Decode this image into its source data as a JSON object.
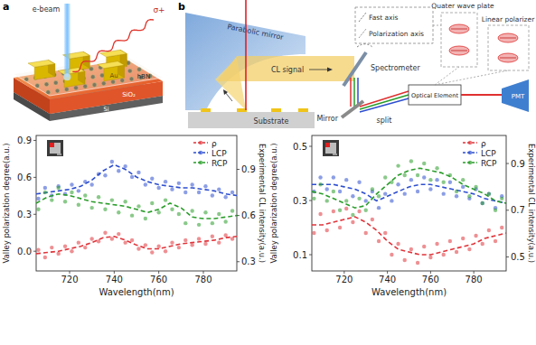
{
  "chart_data": [
    {
      "type": "scatter",
      "x_label": "Wavelength(nm)",
      "y_label": "Valley polarization degree(a.u.)",
      "y2_label": "Experimental CL intensity(a.u.)",
      "xlim": [
        705,
        795
      ],
      "xticks": [
        720,
        740,
        760,
        780
      ],
      "ylim": [
        -0.16,
        0.94
      ],
      "yticks": [
        {
          "value": 0,
          "label": "0.0"
        },
        0.3,
        0.6,
        0.9
      ],
      "y2lim": [
        0.24,
        1.12
      ],
      "y2ticks": [
        0.3,
        0.6,
        0.9
      ],
      "grid": false,
      "legend": "upper right",
      "x": [
        706,
        709,
        712,
        715,
        718,
        721,
        724,
        727,
        730,
        733,
        736,
        739,
        742,
        745,
        748,
        751,
        754,
        757,
        760,
        763,
        766,
        769,
        772,
        775,
        778,
        781,
        784,
        787,
        790,
        793
      ],
      "fit_x": [
        705,
        710,
        715,
        720,
        725,
        730,
        735,
        740,
        745,
        750,
        755,
        760,
        765,
        770,
        775,
        780,
        785,
        790,
        795
      ],
      "series": [
        {
          "name": "ρ",
          "color": "#e0343a",
          "marker": "circle",
          "line_style": "dashed",
          "values": [
            0.01,
            -0.05,
            0.03,
            -0.02,
            0.04,
            0,
            0.07,
            0.03,
            0.1,
            0.08,
            0.15,
            0.1,
            0.14,
            0.07,
            0.09,
            0.02,
            0.05,
            -0.01,
            0.04,
            0,
            0.07,
            0.03,
            0.09,
            0.05,
            0.1,
            0.06,
            0.12,
            0.07,
            0.13,
            0.1
          ],
          "fit": [
            -0.02,
            -0.01,
            0,
            0.02,
            0.04,
            0.07,
            0.11,
            0.12,
            0.09,
            0.05,
            0.02,
            0.02,
            0.04,
            0.06,
            0.07,
            0.08,
            0.09,
            0.11,
            0.12
          ]
        },
        {
          "name": "LCP",
          "color": "#2e4fd0",
          "marker": "circle",
          "line_style": "dashed",
          "axis": "y2",
          "values": [
            0.71,
            0.78,
            0.73,
            0.79,
            0.74,
            0.8,
            0.76,
            0.82,
            0.8,
            0.87,
            0.86,
            0.95,
            0.89,
            0.92,
            0.85,
            0.88,
            0.8,
            0.84,
            0.78,
            0.82,
            0.77,
            0.81,
            0.75,
            0.8,
            0.75,
            0.79,
            0.73,
            0.77,
            0.72,
            0.75
          ],
          "fit": [
            0.74,
            0.75,
            0.76,
            0.77,
            0.79,
            0.83,
            0.89,
            0.93,
            0.9,
            0.85,
            0.82,
            0.8,
            0.79,
            0.78,
            0.78,
            0.77,
            0.76,
            0.74,
            0.73
          ]
        },
        {
          "name": "RCP",
          "color": "#2a9d2a",
          "marker": "circle",
          "line_style": "dashed",
          "axis": "y2",
          "values": [
            0.64,
            0.75,
            0.7,
            0.78,
            0.69,
            0.75,
            0.67,
            0.73,
            0.65,
            0.72,
            0.64,
            0.7,
            0.62,
            0.69,
            0.6,
            0.66,
            0.58,
            0.68,
            0.62,
            0.7,
            0.64,
            0.61,
            0.55,
            0.63,
            0.54,
            0.62,
            0.55,
            0.61,
            0.56,
            0.63
          ],
          "fit": [
            0.68,
            0.72,
            0.74,
            0.73,
            0.71,
            0.69,
            0.68,
            0.67,
            0.66,
            0.64,
            0.62,
            0.64,
            0.68,
            0.65,
            0.59,
            0.58,
            0.58,
            0.59,
            0.6
          ]
        }
      ]
    },
    {
      "type": "scatter",
      "x_label": "Wavelength(nm)",
      "y_label": "Valley polarization degree(a.u.)",
      "y2_label": "Experimental CL intensity(a.u.)",
      "xlim": [
        705,
        795
      ],
      "xticks": [
        720,
        740,
        760,
        780
      ],
      "ylim": [
        0.04,
        0.54
      ],
      "yticks": [
        0.1,
        0.3,
        0.5
      ],
      "y2lim": [
        0.44,
        1.02
      ],
      "y2ticks": [
        0.5,
        0.7,
        0.9
      ],
      "grid": false,
      "legend": "upper right",
      "x": [
        706,
        709,
        712,
        715,
        718,
        721,
        724,
        727,
        730,
        733,
        736,
        739,
        742,
        745,
        748,
        751,
        754,
        757,
        760,
        763,
        766,
        769,
        772,
        775,
        778,
        781,
        784,
        787,
        790,
        793
      ],
      "fit_x": [
        705,
        710,
        715,
        720,
        725,
        730,
        735,
        740,
        745,
        750,
        755,
        760,
        765,
        770,
        775,
        780,
        785,
        790,
        795
      ],
      "series": [
        {
          "name": "ρ",
          "color": "#e0343a",
          "marker": "circle",
          "line_style": "dashed",
          "values": [
            0.18,
            0.25,
            0.19,
            0.26,
            0.2,
            0.27,
            0.22,
            0.26,
            0.18,
            0.23,
            0.15,
            0.18,
            0.1,
            0.14,
            0.08,
            0.12,
            0.07,
            0.13,
            0.09,
            0.14,
            0.1,
            0.15,
            0.11,
            0.16,
            0.12,
            0.17,
            0.14,
            0.19,
            0.15,
            0.2
          ],
          "fit": [
            0.21,
            0.21,
            0.22,
            0.23,
            0.24,
            0.22,
            0.19,
            0.15,
            0.12,
            0.11,
            0.1,
            0.1,
            0.11,
            0.12,
            0.13,
            0.14,
            0.16,
            0.17,
            0.18
          ]
        },
        {
          "name": "LCP",
          "color": "#2e4fd0",
          "marker": "circle",
          "line_style": "dashed",
          "axis": "y2",
          "values": [
            0.78,
            0.84,
            0.79,
            0.84,
            0.78,
            0.83,
            0.76,
            0.82,
            0.74,
            0.78,
            0.71,
            0.77,
            0.74,
            0.81,
            0.77,
            0.83,
            0.78,
            0.84,
            0.79,
            0.83,
            0.77,
            0.82,
            0.76,
            0.8,
            0.75,
            0.79,
            0.73,
            0.77,
            0.71,
            0.76
          ],
          "fit": [
            0.81,
            0.81,
            0.81,
            0.8,
            0.79,
            0.77,
            0.74,
            0.76,
            0.78,
            0.8,
            0.81,
            0.81,
            0.8,
            0.79,
            0.78,
            0.77,
            0.75,
            0.74,
            0.73
          ]
        },
        {
          "name": "RCP",
          "color": "#2a9d2a",
          "marker": "circle",
          "line_style": "dashed",
          "axis": "y2",
          "values": [
            0.75,
            0.81,
            0.74,
            0.78,
            0.7,
            0.74,
            0.68,
            0.75,
            0.7,
            0.79,
            0.76,
            0.84,
            0.82,
            0.89,
            0.85,
            0.91,
            0.85,
            0.9,
            0.83,
            0.88,
            0.82,
            0.85,
            0.78,
            0.83,
            0.76,
            0.8,
            0.73,
            0.77,
            0.7,
            0.75
          ],
          "fit": [
            0.78,
            0.77,
            0.75,
            0.73,
            0.71,
            0.72,
            0.77,
            0.81,
            0.85,
            0.87,
            0.88,
            0.87,
            0.86,
            0.84,
            0.81,
            0.79,
            0.77,
            0.74,
            0.73
          ]
        }
      ]
    }
  ],
  "diagram": {
    "panel_a": {
      "letter": "a",
      "e_beam": "e-beam",
      "sigma": "σ+",
      "au": "Au",
      "hbn": "hBN",
      "sio2": "SiO₂",
      "si": "Si"
    },
    "panel_b": {
      "letter": "b",
      "parabolic_mirror": "Parabolic mirror",
      "substrate": "Substrate",
      "cl_signal": "CL signal",
      "spectrometer": "Spectrometer",
      "mirror": "Mirror",
      "split": "split",
      "optical_element": "Optical Element",
      "pmt": "PMT",
      "fast_axis": "Fast axis",
      "polarization_axis": "Polarization axis",
      "quarter_wave_plate": "Quater wave plate",
      "linear_polarizer": "Linear polarizer"
    }
  }
}
